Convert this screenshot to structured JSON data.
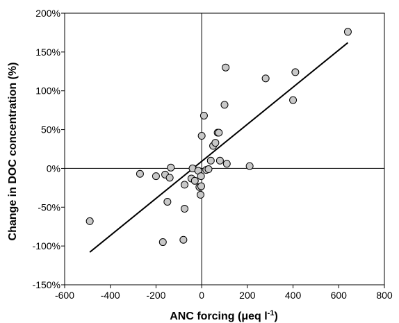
{
  "chart_data": {
    "type": "scatter",
    "title": "",
    "xlabel": "ANC forcing (μeq l",
    "xlabel_sup": "-1",
    "xlabel_suffix": ")",
    "ylabel": "Change in DOC concentration (%)",
    "xlim": [
      -600,
      800
    ],
    "ylim": [
      -150,
      200
    ],
    "x_ticks": [
      -600,
      -400,
      -200,
      0,
      200,
      400,
      600,
      800
    ],
    "x_tick_labels": [
      "-600",
      "-400",
      "-200",
      "0",
      "200",
      "400",
      "600",
      "800"
    ],
    "y_ticks": [
      -150,
      -100,
      -50,
      0,
      50,
      100,
      150,
      200
    ],
    "y_tick_labels": [
      "-150%",
      "-100%",
      "-50%",
      "0%",
      "50%",
      "100%",
      "150%",
      "200%"
    ],
    "grid": false,
    "reference_lines": {
      "x_zero": true,
      "y_zero": true
    },
    "colors": {
      "marker_fill": "#c8c8c8",
      "marker_stroke": "#000000",
      "line": "#000000"
    },
    "points": [
      {
        "x": -490,
        "y": -68
      },
      {
        "x": -270,
        "y": -7
      },
      {
        "x": -200,
        "y": -10
      },
      {
        "x": -170,
        "y": -95
      },
      {
        "x": -160,
        "y": -8
      },
      {
        "x": -150,
        "y": -43
      },
      {
        "x": -140,
        "y": -12
      },
      {
        "x": -135,
        "y": 1
      },
      {
        "x": -80,
        "y": -92
      },
      {
        "x": -75,
        "y": -52
      },
      {
        "x": -75,
        "y": -21
      },
      {
        "x": -45,
        "y": -13
      },
      {
        "x": -40,
        "y": 0
      },
      {
        "x": -30,
        "y": -16
      },
      {
        "x": -15,
        "y": -3
      },
      {
        "x": -10,
        "y": -24
      },
      {
        "x": -5,
        "y": -34
      },
      {
        "x": -3,
        "y": -10
      },
      {
        "x": -2,
        "y": -23
      },
      {
        "x": 0,
        "y": 42
      },
      {
        "x": 10,
        "y": 68
      },
      {
        "x": 20,
        "y": -2
      },
      {
        "x": 30,
        "y": -1
      },
      {
        "x": 40,
        "y": 10
      },
      {
        "x": 50,
        "y": 29
      },
      {
        "x": 60,
        "y": 33
      },
      {
        "x": 70,
        "y": 46
      },
      {
        "x": 75,
        "y": 46
      },
      {
        "x": 80,
        "y": 10
      },
      {
        "x": 100,
        "y": 82
      },
      {
        "x": 105,
        "y": 130
      },
      {
        "x": 110,
        "y": 6
      },
      {
        "x": 210,
        "y": 3
      },
      {
        "x": 280,
        "y": 116
      },
      {
        "x": 400,
        "y": 88
      },
      {
        "x": 410,
        "y": 124
      },
      {
        "x": 640,
        "y": 176
      }
    ],
    "trendline": {
      "x": [
        -490,
        640
      ],
      "y": [
        -108,
        162
      ]
    }
  }
}
